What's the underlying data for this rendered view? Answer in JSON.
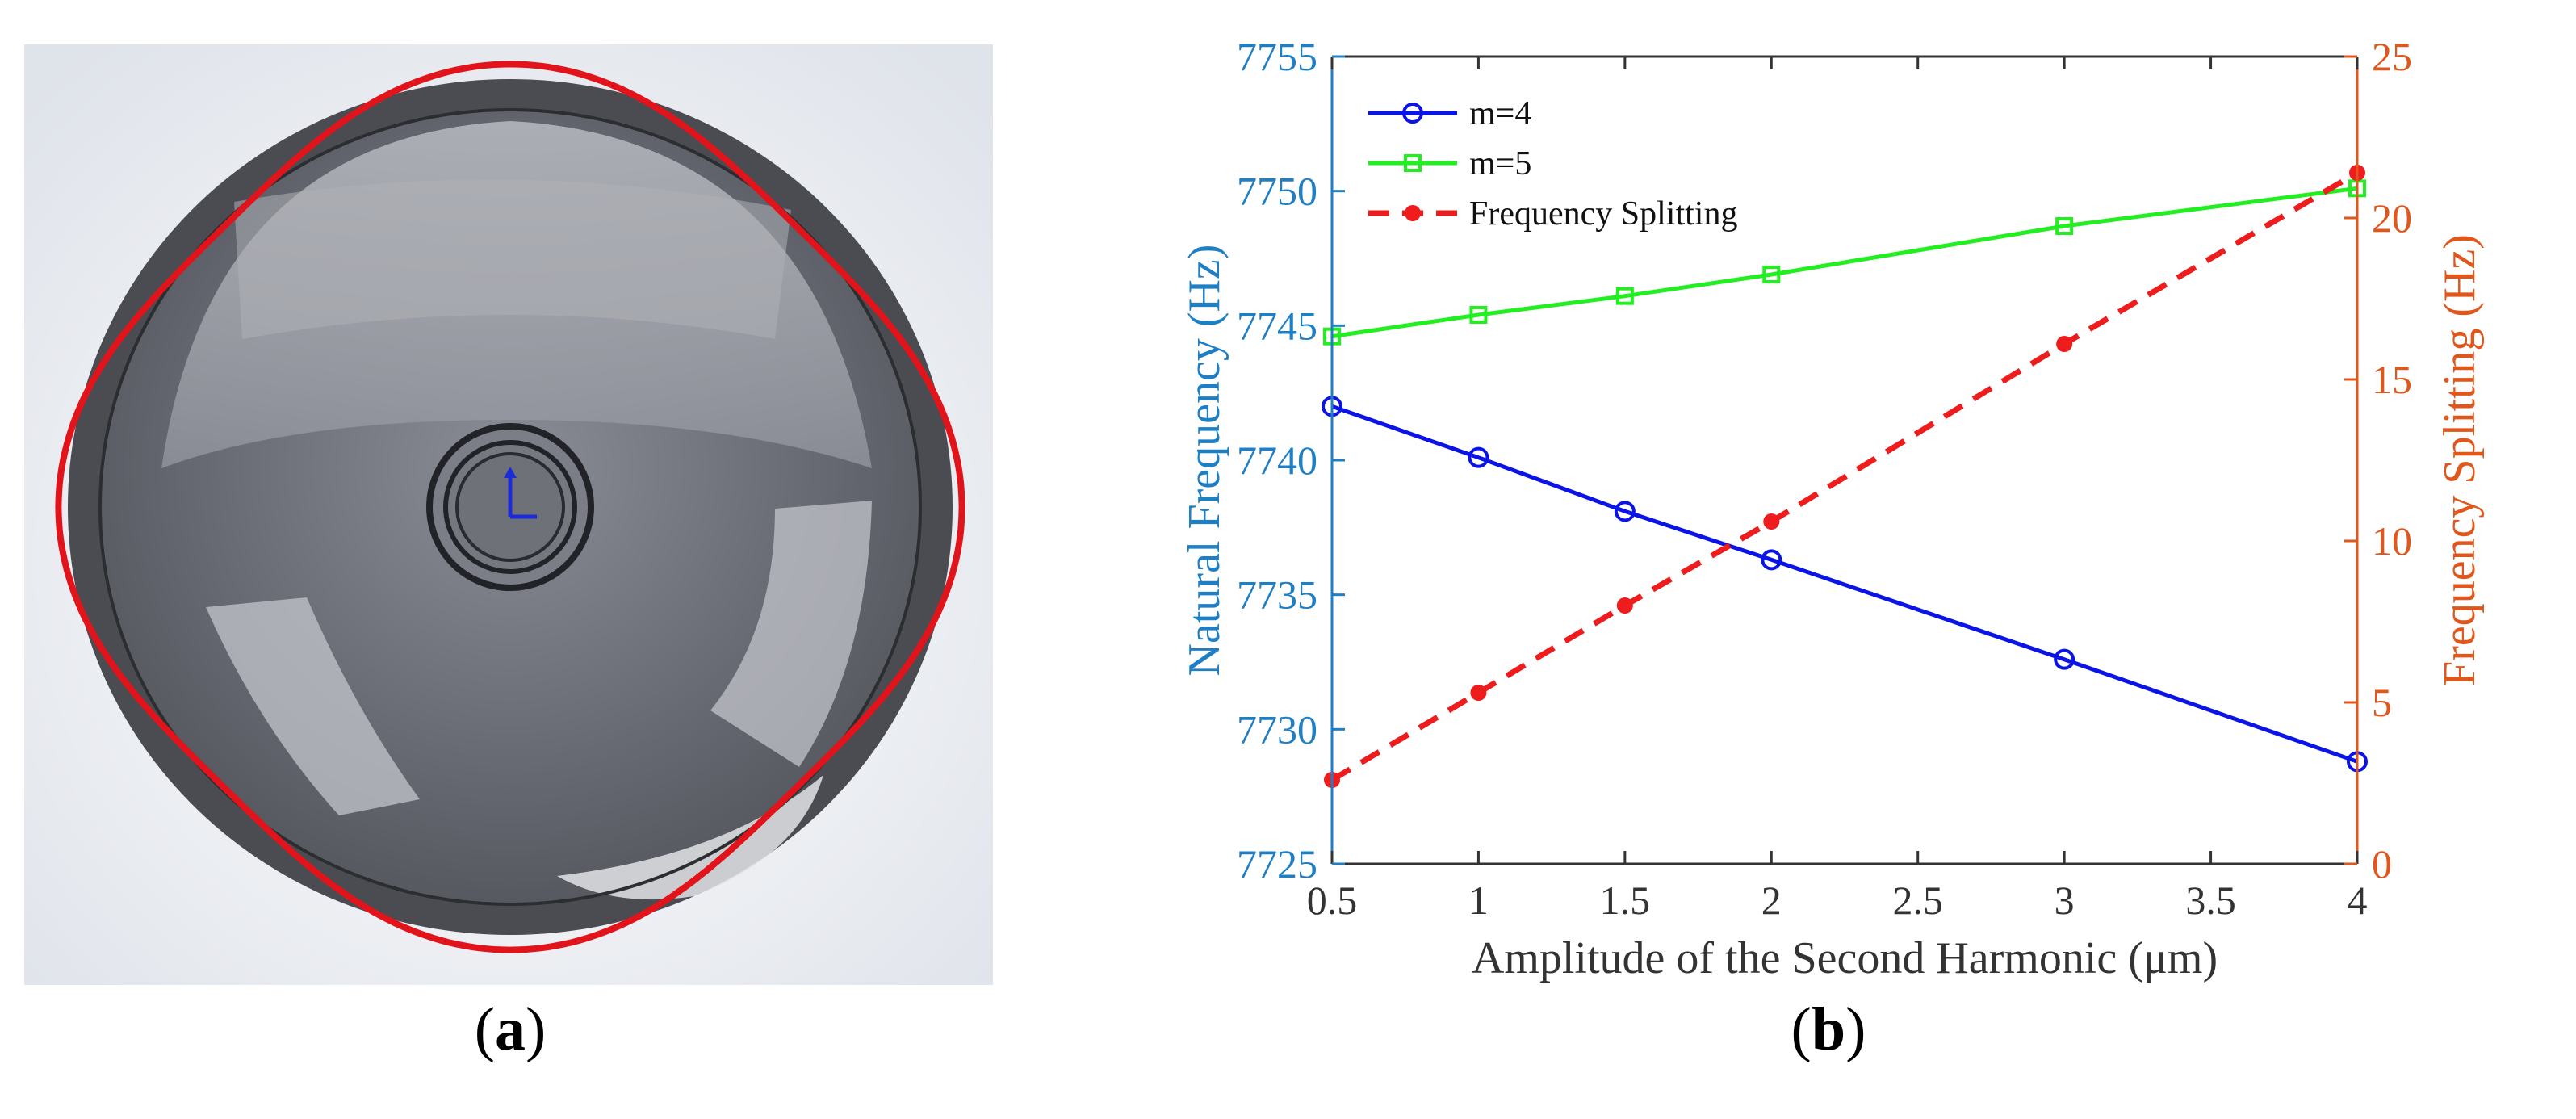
{
  "panel_labels": {
    "a_open": "(",
    "a_letter": "a",
    "a_close": ")",
    "b_open": "(",
    "b_letter": "b",
    "b_close": ")"
  },
  "chart_data": {
    "type": "line",
    "xlabel": "Amplitude of the Second Harmonic (μm)",
    "ylabel_left": "Natural Frequency (Hz)",
    "ylabel_right": "Frequency Splitting (Hz)",
    "xlim": [
      0.5,
      4
    ],
    "ylim_left": [
      7725,
      7755
    ],
    "ylim_right": [
      0,
      25
    ],
    "x_ticks": [
      "0.5",
      "1",
      "1.5",
      "2",
      "2.5",
      "3",
      "3.5",
      "4"
    ],
    "y_left_ticks": [
      "7725",
      "7730",
      "7735",
      "7740",
      "7745",
      "7750",
      "7755"
    ],
    "y_right_ticks": [
      "0",
      "5",
      "10",
      "15",
      "20",
      "25"
    ],
    "grid": false,
    "legend_position": "top-left",
    "series": [
      {
        "name": "m=4",
        "axis": "left",
        "color": "#0a14e6",
        "marker": "circle",
        "style": "solid",
        "x": [
          0.5,
          1,
          1.5,
          2,
          3,
          4
        ],
        "y": [
          7742.0,
          7740.1,
          7738.1,
          7736.3,
          7732.6,
          7728.8
        ]
      },
      {
        "name": "m=5",
        "axis": "left",
        "color": "#22ee22",
        "marker": "square",
        "style": "solid",
        "x": [
          0.5,
          1,
          1.5,
          2,
          3,
          4
        ],
        "y": [
          7744.6,
          7745.4,
          7746.1,
          7746.9,
          7748.7,
          7750.1
        ]
      },
      {
        "name": "Frequency Splitting",
        "axis": "right",
        "color": "#ee1c1c",
        "marker": "dot",
        "style": "dashed",
        "x": [
          0.5,
          1,
          1.5,
          2,
          3,
          4
        ],
        "y": [
          2.6,
          5.3,
          8.0,
          10.6,
          16.1,
          21.4
        ]
      }
    ]
  },
  "colors": {
    "left_axis": "#1f7fc4",
    "right_axis": "#e0561b",
    "contour": "#e0141a",
    "shell_dark": "#4a4c52",
    "shell_mid": "#6d7079",
    "shell_light": "#9a9ca4"
  }
}
